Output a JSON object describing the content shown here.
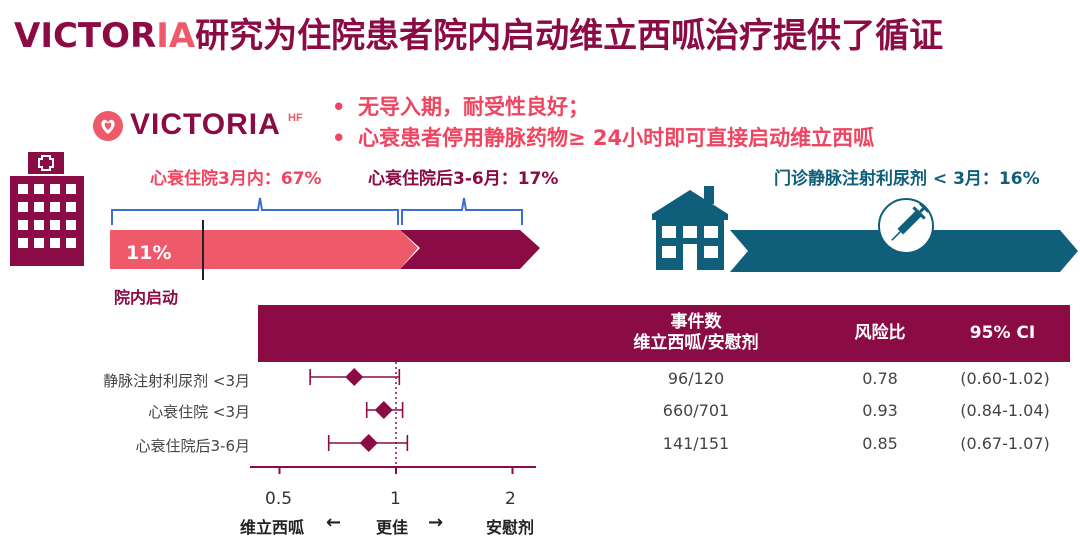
{
  "title": {
    "prefix": "VICTOR",
    "highlight": "IA",
    "rest": "研究为住院患者院内启动维立西呱治疗提供了循证"
  },
  "logo": {
    "text": "VICTORIA",
    "suffix": "HF"
  },
  "bullets": [
    {
      "dot": "•",
      "text": "无导入期，耐受性良好；"
    },
    {
      "dot": "•",
      "text": "心衰患者停用静脉药物≥ 24小时即可直接启动维立西呱"
    }
  ],
  "timeline": {
    "in_hospital_label": "心衰住院3月内：67%",
    "post_hospital_label": "心衰住院后3-6月：17%",
    "outpatient_label": "门诊静脉注射利尿剂 < 3月：16%",
    "bar_value": "11%",
    "in_hospital_start": "院内启动"
  },
  "table": {
    "col_events_line1": "事件数",
    "col_events_line2": "维立西呱/安慰剂",
    "col_hr": "风险比",
    "col_ci": "95% CI",
    "rows": [
      {
        "label": "静脉注射利尿剂 <3月",
        "events": "96/120",
        "hr": "0.78",
        "ci": "(0.60-1.02)"
      },
      {
        "label": "心衰住院 <3月",
        "events": "660/701",
        "hr": "0.93",
        "ci": "(0.84-1.04)"
      },
      {
        "label": "心衰住院后3-6月",
        "events": "141/151",
        "hr": "0.85",
        "ci": "(0.67-1.07)"
      }
    ]
  },
  "axis": {
    "ticks": [
      "0.5",
      "1",
      "2"
    ],
    "left_label": "维立西呱",
    "center_label": "更佳",
    "right_label": "安慰剂",
    "arrow_left": "←",
    "arrow_right": "→"
  },
  "colors": {
    "brand": "#8b0b45",
    "accent": "#ef5a6b",
    "teal": "#0f5f7b"
  },
  "chart_data": {
    "type": "forest",
    "x_scale": "log",
    "xlim": [
      0.4,
      2.3
    ],
    "reference_line": 1,
    "series": [
      {
        "name": "静脉注射利尿剂 <3月",
        "hr": 0.78,
        "ci": [
          0.6,
          1.02
        ]
      },
      {
        "name": "心衰住院 <3月",
        "hr": 0.93,
        "ci": [
          0.84,
          1.04
        ]
      },
      {
        "name": "心衰住院后3-6月",
        "hr": 0.85,
        "ci": [
          0.67,
          1.07
        ]
      }
    ]
  }
}
